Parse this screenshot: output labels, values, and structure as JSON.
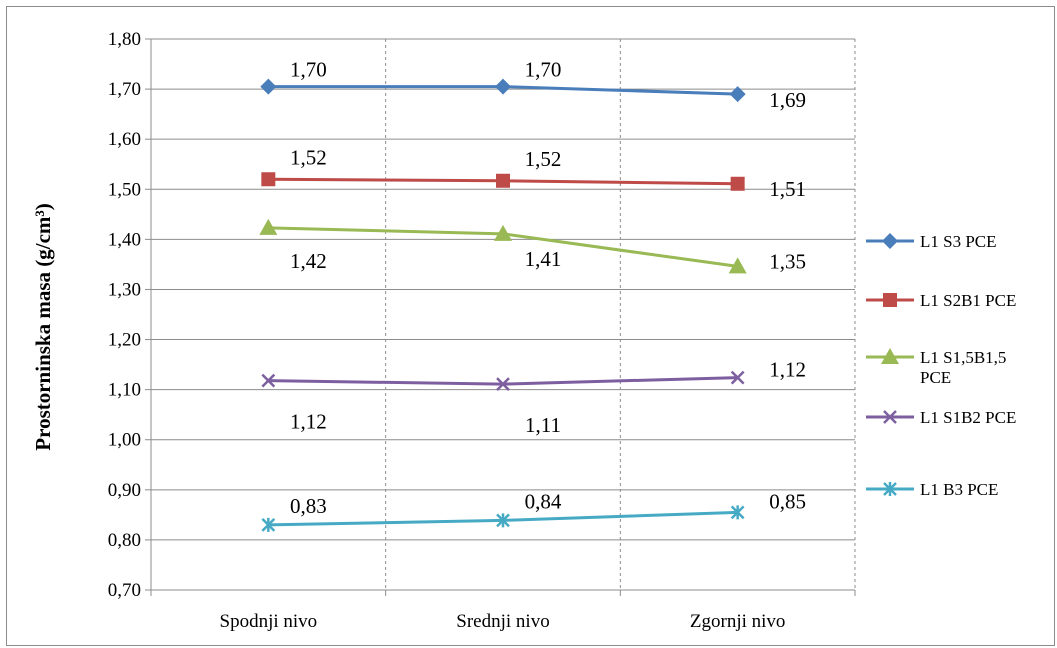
{
  "chart_data": {
    "type": "line",
    "categories": [
      "Spodnji nivo",
      "Srednji nivo",
      "Zgornji nivo"
    ],
    "ylabel": "Prostorninska masa (g/cm³)",
    "ylim": [
      0.7,
      1.8
    ],
    "yticks": [
      "0,70",
      "0,80",
      "0,90",
      "1,00",
      "1,10",
      "1,20",
      "1,30",
      "1,40",
      "1,50",
      "1,60",
      "1,70",
      "1,80"
    ],
    "grid": "horizontal and vertical (dashed between categories)",
    "legend_position": "right",
    "series": [
      {
        "name": "L1 S3 PCE",
        "color": "#4a7ebb",
        "marker": "diamond",
        "values": [
          1.705,
          1.705,
          1.69
        ],
        "labels": [
          "1,70",
          "1,70",
          "1,69"
        ]
      },
      {
        "name": "L1 S2B1 PCE",
        "color": "#be4b48",
        "marker": "square",
        "values": [
          1.52,
          1.517,
          1.511
        ],
        "labels": [
          "1,52",
          "1,52",
          "1,51"
        ]
      },
      {
        "name": "L1 S1,5B1,5 PCE",
        "color": "#98b954",
        "marker": "triangle",
        "values": [
          1.423,
          1.411,
          1.346
        ],
        "labels": [
          "1,42",
          "1,41",
          "1,35"
        ]
      },
      {
        "name": "L1 S1B2 PCE",
        "color": "#7d5fa0",
        "marker": "x",
        "values": [
          1.118,
          1.111,
          1.124
        ],
        "labels": [
          "1,12",
          "1,11",
          "1,12"
        ]
      },
      {
        "name": "L1 B3 PCE",
        "color": "#46aac5",
        "marker": "star",
        "values": [
          0.83,
          0.839,
          0.855
        ],
        "labels": [
          "0,83",
          "0,84",
          "0,85"
        ]
      }
    ]
  }
}
